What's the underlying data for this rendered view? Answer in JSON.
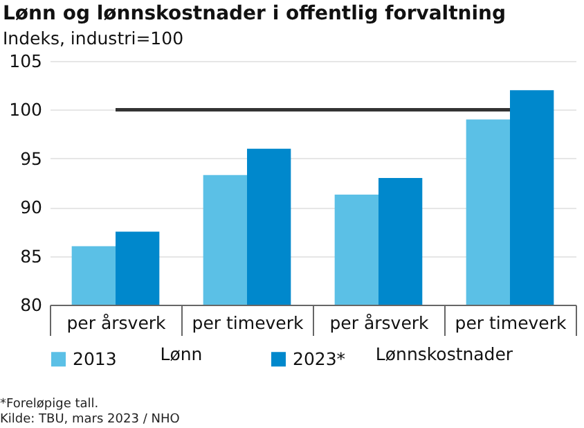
{
  "chart_data": {
    "type": "bar",
    "title": "Lønn og lønnskostnader  i offentlig forvaltning",
    "subtitle": "Indeks, industri=100",
    "categories": [
      "per årsverk",
      "per timeverk",
      "per årsverk",
      "per timeverk"
    ],
    "series": [
      {
        "name": "2013",
        "color": "#5bc0e6",
        "values": [
          86,
          93.3,
          91.3,
          99
        ]
      },
      {
        "name": "2023*",
        "color": "#0088cc",
        "values": [
          87.5,
          96,
          93,
          102
        ]
      }
    ],
    "ylim": [
      80,
      105
    ],
    "yticks": [
      80,
      85,
      90,
      95,
      100,
      105
    ],
    "grid": "y",
    "legend": "bottom",
    "ref_lines": [
      {
        "axis": "y",
        "value": 100,
        "color": "#333333"
      }
    ],
    "annotations": [
      "Lønn",
      "Lønnskostnader",
      "*Foreløpige tall.",
      "Kilde: TBU, mars 2023 / NHO"
    ]
  }
}
